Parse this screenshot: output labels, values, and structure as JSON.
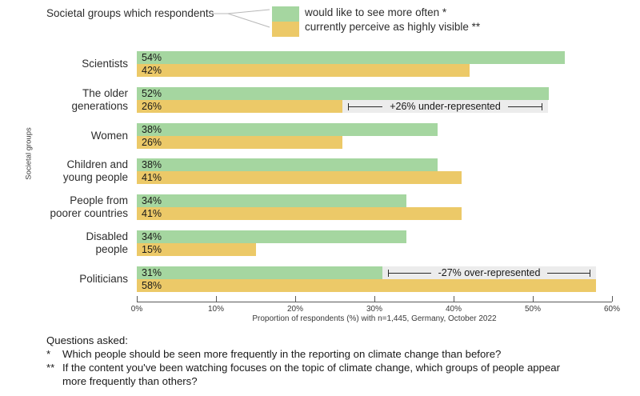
{
  "legend": {
    "title": "Societal groups which respondents",
    "items": [
      {
        "label": "would like to see more often *",
        "color": "#a5d6a0"
      },
      {
        "label": "currently perceive as highly visible **",
        "color": "#ecc968"
      }
    ]
  },
  "chart_data": {
    "type": "bar",
    "orientation": "horizontal",
    "categories": [
      "Scientists",
      "The older\ngenerations",
      "Women",
      "Children and\nyoung people",
      "People from\npoorer countries",
      "Disabled\npeople",
      "Politicians"
    ],
    "series": [
      {
        "name": "would like to see more often *",
        "color": "#a5d6a0",
        "values": [
          54,
          52,
          38,
          38,
          34,
          34,
          31
        ]
      },
      {
        "name": "currently perceive as highly visible **",
        "color": "#ecc968",
        "values": [
          42,
          26,
          26,
          41,
          41,
          15,
          58
        ]
      }
    ],
    "xlim": [
      0,
      60
    ],
    "xticks": [
      "0%",
      "10%",
      "20%",
      "30%",
      "40%",
      "50%",
      "60%"
    ],
    "xlabel": "Proportion of respondents (%) with n=1,445, Germany, October 2022",
    "ylabel": "Societal groups",
    "grid": false,
    "legend_position": "top",
    "annotations": [
      {
        "label": "+26% under-represented",
        "category": "The older generations",
        "category_index": 1,
        "row": "bottom",
        "from": 26,
        "to": 52
      },
      {
        "label": "-27% over-represented",
        "category": "Politicians",
        "category_index": 6,
        "row": "top",
        "from": 31,
        "to": 58
      }
    ]
  },
  "footer": {
    "heading": "Questions asked:",
    "questions": [
      {
        "marker": "*",
        "text": "Which people should be seen more frequently in the reporting on climate change than before?"
      },
      {
        "marker": "**",
        "text": "If the content you've been watching focuses on the topic of climate change, which groups of people appear\nmore frequently than others?"
      }
    ]
  }
}
